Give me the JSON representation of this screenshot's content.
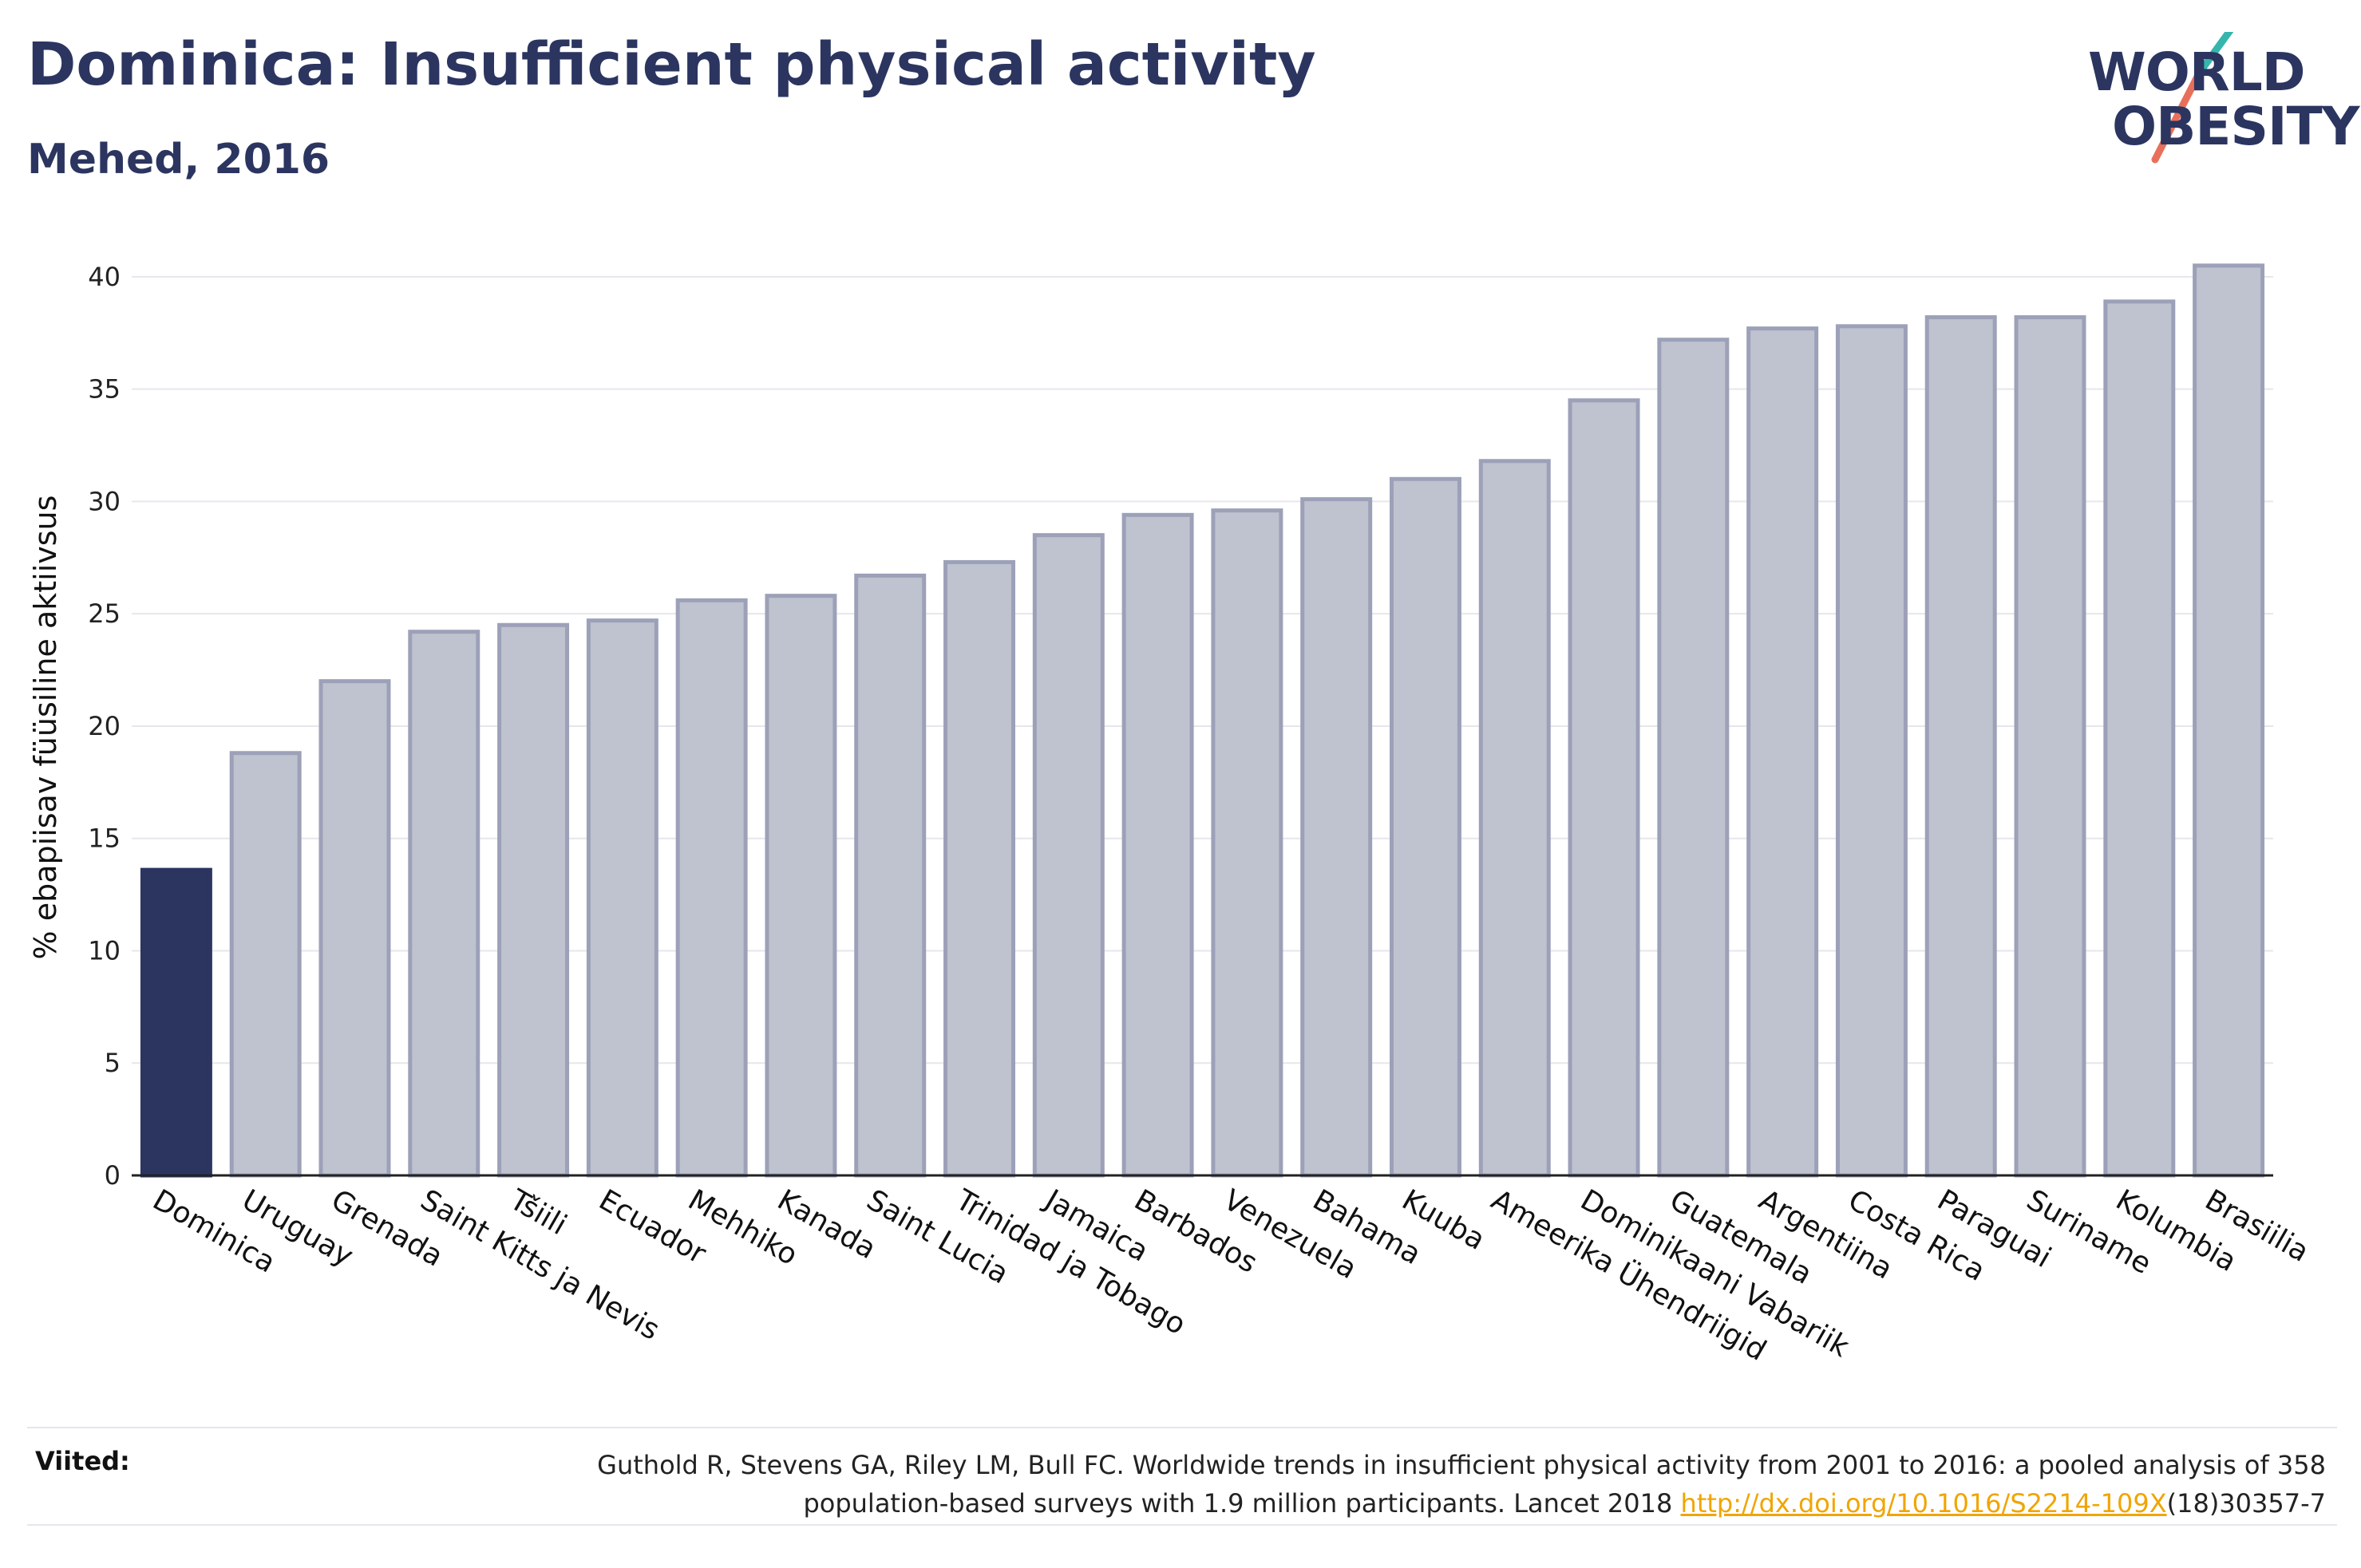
{
  "header": {
    "title": "Dominica: Insufficient physical activity",
    "subtitle": "Mehed, 2016"
  },
  "logo": {
    "line1": "WORLD",
    "line2": "OBESITY",
    "slash_colors": [
      "#35b6ad",
      "#e8705a"
    ]
  },
  "chart_data": {
    "type": "bar",
    "title": "Dominica: Insufficient physical activity",
    "subtitle": "Mehed, 2016",
    "xlabel": "",
    "ylabel": "% ebapiisav füüsiline aktiivsus",
    "ylim": [
      0,
      40
    ],
    "yticks": [
      0,
      5,
      10,
      15,
      20,
      25,
      30,
      35,
      40
    ],
    "grid": "horizontal",
    "categories": [
      "Dominica",
      "Uruguay",
      "Grenada",
      "Saint Kitts ja Nevis",
      "Tšiili",
      "Ecuador",
      "Mehhiko",
      "Kanada",
      "Saint Lucia",
      "Trinidad ja Tobago",
      "Jamaica",
      "Barbados",
      "Venezuela",
      "Bahama",
      "Kuuba",
      "Ameerika Ühendriigid",
      "Dominikaani Vabariik",
      "Guatemala",
      "Argentiina",
      "Costa Rica",
      "Paraguai",
      "Suriname",
      "Kolumbia",
      "Brasiilia"
    ],
    "values": [
      13.6,
      18.8,
      22.0,
      24.2,
      24.5,
      24.7,
      25.6,
      25.8,
      26.7,
      27.3,
      28.5,
      29.4,
      29.6,
      30.1,
      31.0,
      31.8,
      34.5,
      37.2,
      37.7,
      37.8,
      38.2,
      38.2,
      38.9,
      40.5
    ],
    "highlight": "Dominica",
    "colors": {
      "highlight": "#2b3560",
      "other_fill": "#bfc2cf",
      "other_stroke": "#9ca1b8"
    }
  },
  "references": {
    "label": "Viited:",
    "line1": "Guthold R, Stevens GA, Riley LM, Bull FC. Worldwide trends in insufficient physical activity from 2001 to 2016: a pooled analysis of 358",
    "line2_prefix": "population-based surveys with 1.9 million participants. Lancet 2018 ",
    "link_text": "http://dx.doi.org/10.1016/S2214-109X",
    "line2_suffix": "(18)30357-7"
  }
}
